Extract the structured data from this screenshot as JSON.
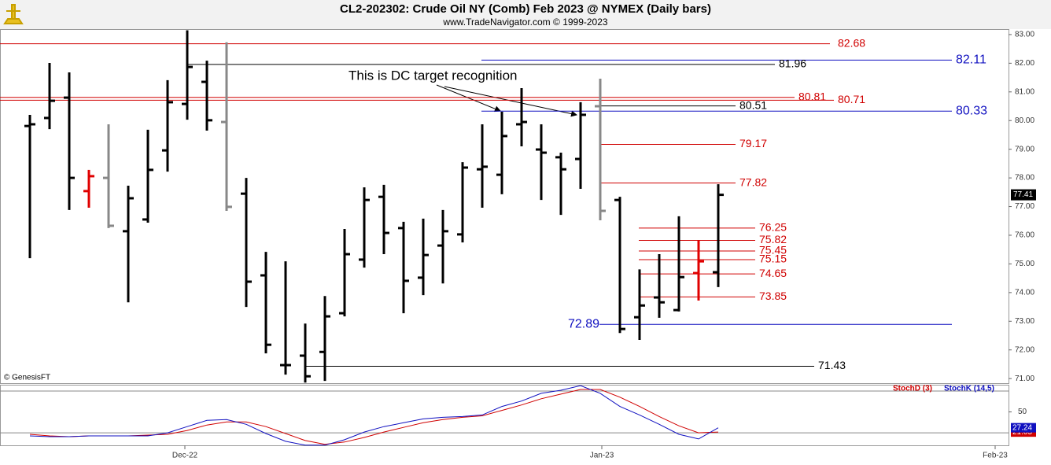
{
  "chart_data": {
    "type": "ohlc",
    "title": "CL2-202302:  Crude Oil NY (Comb) Feb 2023 @ NYMEX  (Daily bars)",
    "subtitle": "www.TradeNavigator.com © 1999-2023",
    "credit": "© GenesisFT",
    "annotation": "This is DC target recognition",
    "xlim": [
      -1.52,
      49.76
    ],
    "xticks": [
      {
        "value": 7.88,
        "label": "Dec-22"
      },
      {
        "value": 29.08,
        "label": "Jan-23"
      },
      {
        "value": 49.08,
        "label": "Feb-23"
      }
    ],
    "ylim": [
      70.84,
      83.19
    ],
    "yticks": [
      {
        "value": 71,
        "label": "71.00"
      },
      {
        "value": 72,
        "label": "72.00"
      },
      {
        "value": 73,
        "label": "73.00"
      },
      {
        "value": 74,
        "label": "74.00"
      },
      {
        "value": 75,
        "label": "75.00"
      },
      {
        "value": 76,
        "label": "76.00"
      },
      {
        "value": 77,
        "label": "77.00"
      },
      {
        "value": 78,
        "label": "78.00"
      },
      {
        "value": 79,
        "label": "79.00"
      },
      {
        "value": 80,
        "label": "80.00"
      },
      {
        "value": 81,
        "label": "81.00"
      },
      {
        "value": 82,
        "label": "82.00"
      },
      {
        "value": 83,
        "label": "83.00"
      }
    ],
    "series": {
      "open": [
        79.81,
        80.09,
        80.8,
        77.54,
        78.0,
        76.14,
        76.55,
        78.96,
        80.58,
        81.35,
        79.95,
        77.45,
        74.6,
        71.47,
        71.8,
        71.93,
        73.28,
        75.15,
        77.34,
        76.25,
        74.52,
        75.64,
        76.03,
        78.3,
        78.11,
        79.87,
        78.99,
        78.72,
        78.66,
        80.5,
        77.23,
        73.14,
        73.83,
        73.39,
        74.68,
        74.71
      ],
      "high": [
        80.2,
        82.01,
        81.68,
        78.28,
        79.87,
        77.73,
        79.68,
        81.41,
        83.15,
        82.09,
        82.73,
        78.0,
        75.42,
        75.09,
        72.92,
        73.88,
        76.22,
        77.67,
        77.76,
        76.47,
        76.58,
        76.88,
        78.55,
        79.87,
        80.31,
        81.13,
        79.87,
        78.88,
        80.64,
        81.46,
        77.34,
        74.81,
        75.34,
        76.66,
        75.81,
        77.78
      ],
      "low": [
        75.2,
        79.7,
        76.88,
        76.96,
        76.25,
        73.66,
        76.44,
        78.22,
        80.03,
        79.65,
        76.85,
        73.5,
        71.88,
        71.14,
        70.86,
        70.92,
        73.17,
        74.87,
        75.34,
        73.28,
        73.91,
        74.32,
        75.75,
        76.96,
        77.43,
        79.1,
        77.23,
        76.71,
        77.62,
        76.52,
        72.59,
        72.35,
        73.12,
        73.34,
        73.72,
        74.19
      ],
      "close": [
        79.87,
        80.69,
        78.0,
        78.06,
        76.33,
        77.29,
        78.28,
        80.64,
        81.87,
        80.01,
        76.99,
        74.38,
        72.18,
        71.47,
        71.08,
        73.17,
        75.34,
        77.23,
        76.08,
        74.41,
        75.31,
        76.14,
        78.36,
        78.39,
        79.46,
        79.95,
        78.88,
        78.3,
        80.2,
        76.85,
        72.73,
        73.55,
        73.66,
        74.54,
        75.09,
        77.41
      ],
      "colors": [
        "#000",
        "#000",
        "#000",
        "#e00000",
        "#888",
        "#000",
        "#000",
        "#000",
        "#000",
        "#000",
        "#888",
        "#000",
        "#000",
        "#000",
        "#000",
        "#000",
        "#000",
        "#000",
        "#000",
        "#000",
        "#000",
        "#000",
        "#000",
        "#000",
        "#000",
        "#000",
        "#000",
        "#000",
        "#000",
        "#888",
        "#000",
        "#000",
        "#000",
        "#000",
        "#e00000",
        "#000"
      ]
    },
    "last_price": 77.41,
    "levels": [
      {
        "value": 82.68,
        "color": "#d00000"
      },
      {
        "value": 82.11,
        "color": "#1010c0"
      },
      {
        "value": 81.96,
        "color": "#000000"
      },
      {
        "value": 80.81,
        "color": "#d00000"
      },
      {
        "value": 80.71,
        "color": "#d00000"
      },
      {
        "value": 80.51,
        "color": "#000000"
      },
      {
        "value": 80.33,
        "color": "#1010c0"
      },
      {
        "value": 79.17,
        "color": "#d00000"
      },
      {
        "value": 77.82,
        "color": "#d00000"
      },
      {
        "value": 76.25,
        "color": "#d00000"
      },
      {
        "value": 75.82,
        "color": "#d00000"
      },
      {
        "value": 75.45,
        "color": "#d00000"
      },
      {
        "value": 75.15,
        "color": "#d00000"
      },
      {
        "value": 74.65,
        "color": "#d00000"
      },
      {
        "value": 73.85,
        "color": "#d00000"
      },
      {
        "value": 72.89,
        "color": "#1010c0"
      },
      {
        "value": 71.43,
        "color": "#000000"
      }
    ],
    "stochastic": {
      "type": "line",
      "ylim": [
        2,
        89
      ],
      "yticks": [
        50
      ],
      "reference_lines": [
        20,
        80
      ],
      "series": [
        {
          "name": "StochD (3)",
          "color": "#d00000",
          "values": [
            17.8,
            15.6,
            14.4,
            15.6,
            15.6,
            15.6,
            16.7,
            17.8,
            23.3,
            31.1,
            35.6,
            35.6,
            28.9,
            18.9,
            8.9,
            3.3,
            6.7,
            13.3,
            21.1,
            27.8,
            34.4,
            38.9,
            42.2,
            44.4,
            52.2,
            60,
            68.9,
            75.6,
            82.2,
            82.2,
            71.1,
            57.8,
            43.3,
            30,
            20,
            21.05
          ]
        },
        {
          "name": "StochK (14,5)",
          "color": "#1010c0",
          "values": [
            15.6,
            14.4,
            14.4,
            15.6,
            15.6,
            15.6,
            15.6,
            20,
            28.9,
            37.8,
            38.9,
            32.2,
            18.9,
            7.8,
            2.2,
            2.2,
            10,
            21.1,
            28.9,
            34.4,
            40,
            42.2,
            43.3,
            45.6,
            57.8,
            65.6,
            76.7,
            81.1,
            87.8,
            76.7,
            57.8,
            45.6,
            32.2,
            17.8,
            11.1,
            27.24
          ]
        }
      ]
    }
  }
}
